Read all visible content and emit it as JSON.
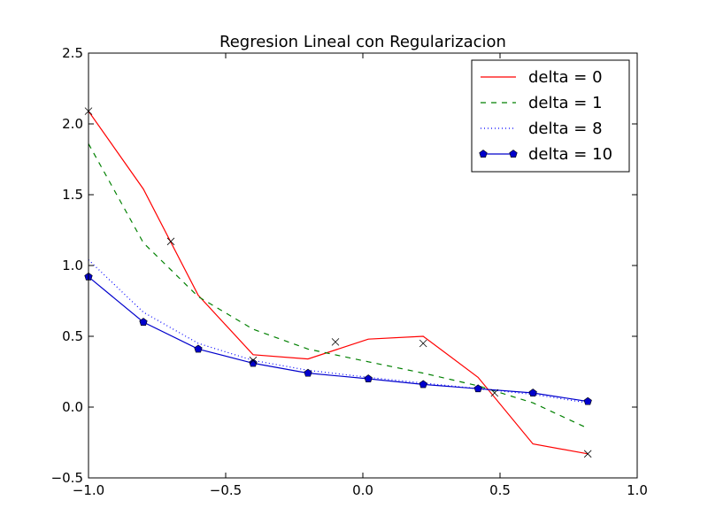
{
  "chart_data": {
    "type": "line",
    "title": "Regresion Lineal con Regularizacion",
    "xlabel": "",
    "ylabel": "",
    "xlim": [
      -1.0,
      1.0
    ],
    "ylim": [
      -0.5,
      2.5
    ],
    "xticks": [
      -1.0,
      -0.5,
      0.0,
      0.5,
      1.0
    ],
    "xtick_labels": [
      "−1.0",
      "−0.5",
      "0.0",
      "0.5",
      "1.0"
    ],
    "yticks": [
      -0.5,
      0.0,
      0.5,
      1.0,
      1.5,
      2.0,
      2.5
    ],
    "ytick_labels": [
      "−0.5",
      "0.0",
      "0.5",
      "1.0",
      "1.5",
      "2.0",
      "2.5"
    ],
    "grid": false,
    "legend_position": "top-right",
    "observations": {
      "marker": "x",
      "color": "#000000",
      "x": [
        -1.0,
        -0.7,
        -0.4,
        -0.1,
        0.22,
        0.48,
        0.82
      ],
      "y": [
        2.09,
        1.17,
        0.33,
        0.46,
        0.45,
        0.1,
        -0.33
      ]
    },
    "series": [
      {
        "name": "delta = 0",
        "color": "#ff0000",
        "style": "solid",
        "marker": "none",
        "x": [
          -1.0,
          -0.8,
          -0.6,
          -0.4,
          -0.2,
          0.02,
          0.22,
          0.42,
          0.62,
          0.82
        ],
        "y": [
          2.09,
          1.54,
          0.79,
          0.37,
          0.34,
          0.48,
          0.5,
          0.21,
          -0.26,
          -0.33
        ]
      },
      {
        "name": "delta = 1",
        "color": "#008000",
        "style": "dashed",
        "marker": "none",
        "x": [
          -1.0,
          -0.8,
          -0.6,
          -0.4,
          -0.2,
          0.02,
          0.22,
          0.42,
          0.62,
          0.82
        ],
        "y": [
          1.86,
          1.16,
          0.78,
          0.55,
          0.41,
          0.32,
          0.24,
          0.15,
          0.03,
          -0.15
        ]
      },
      {
        "name": "delta = 8",
        "color": "#0000ff",
        "style": "dotted",
        "marker": "none",
        "x": [
          -1.0,
          -0.8,
          -0.6,
          -0.4,
          -0.2,
          0.02,
          0.22,
          0.42,
          0.62,
          0.82
        ],
        "y": [
          1.04,
          0.67,
          0.45,
          0.33,
          0.26,
          0.21,
          0.17,
          0.13,
          0.09,
          0.03
        ]
      },
      {
        "name": "delta = 10",
        "color": "#0000cc",
        "style": "solid",
        "marker": "pentagon",
        "x": [
          -1.0,
          -0.8,
          -0.6,
          -0.4,
          -0.2,
          0.02,
          0.22,
          0.42,
          0.62,
          0.82
        ],
        "y": [
          0.92,
          0.6,
          0.41,
          0.31,
          0.24,
          0.2,
          0.16,
          0.13,
          0.1,
          0.04
        ]
      }
    ]
  }
}
